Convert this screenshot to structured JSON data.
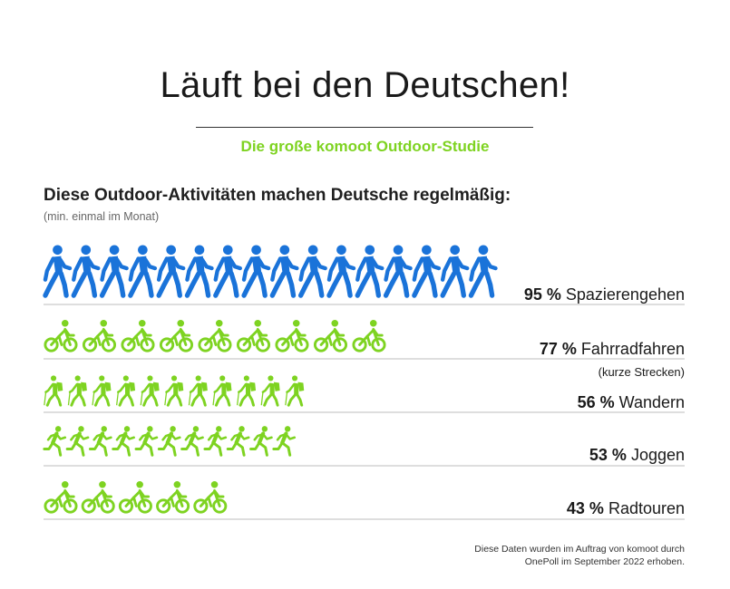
{
  "title": "Läuft bei den Deutschen!",
  "subtitle": "Die große komoot Outdoor-Studie",
  "heading": "Diese Outdoor-Aktivitäten machen Deutsche regelmäßig:",
  "subheading": "(min. einmal im Monat)",
  "source": "Diese Daten wurden im Auftrag von komoot durch OnePoll im September 2022 erhoben.",
  "colors": {
    "blue": "#1a73d9",
    "green": "#7ed321",
    "title_rule": "#333333"
  },
  "chart_data": {
    "type": "bar",
    "title": "Diese Outdoor-Aktivitäten machen Deutsche regelmäßig:",
    "subtitle": "(min. einmal im Monat)",
    "categories": [
      "Spazierengehen",
      "Fahrradfahren",
      "Wandern",
      "Joggen",
      "Radtouren"
    ],
    "values": [
      95,
      77,
      56,
      53,
      43
    ],
    "value_labels": [
      "95 %",
      "77 %",
      "56 %",
      "53 %",
      "43 %"
    ],
    "notes": [
      "",
      "(kurze Strecken)",
      "",
      "",
      ""
    ],
    "icons": [
      "walking-person-icon",
      "cyclist-icon",
      "hiker-icon",
      "runner-icon",
      "cyclist-icon"
    ],
    "icon_counts": [
      16,
      9,
      11,
      11,
      5
    ],
    "icon_colors": [
      "#1a73d9",
      "#7ed321",
      "#7ed321",
      "#7ed321",
      "#7ed321"
    ],
    "unit": "%"
  }
}
